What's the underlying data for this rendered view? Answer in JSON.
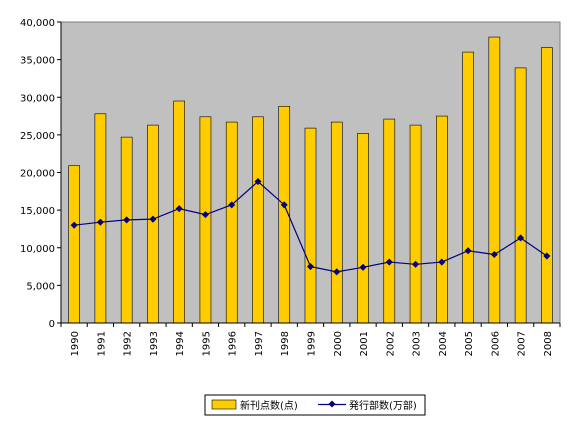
{
  "chart_data": {
    "type": "bar",
    "categories": [
      "1990",
      "1991",
      "1992",
      "1993",
      "1994",
      "1995",
      "1996",
      "1997",
      "1998",
      "1999",
      "2000",
      "2001",
      "2002",
      "2003",
      "2004",
      "2005",
      "2006",
      "2007",
      "2008"
    ],
    "series": [
      {
        "name": "新刊点数(点)",
        "type": "bar",
        "color": "#FFCC00",
        "values": [
          20900,
          27800,
          24700,
          26300,
          29500,
          27400,
          26700,
          27400,
          28800,
          25900,
          26700,
          25200,
          27100,
          26300,
          27500,
          36000,
          38000,
          33900,
          36600
        ]
      },
      {
        "name": "発行部数(万部)",
        "type": "line",
        "color": "#000080",
        "values": [
          13000,
          13400,
          13700,
          13800,
          15200,
          14400,
          15700,
          18800,
          15700,
          7500,
          6800,
          7400,
          8100,
          7800,
          8100,
          9600,
          9100,
          11300,
          8900
        ]
      }
    ],
    "y_ticks": [
      "0",
      "5,000",
      "10,000",
      "15,000",
      "20,000",
      "25,000",
      "30,000",
      "35,000",
      "40,000"
    ],
    "ylim": [
      0,
      40000
    ],
    "grid": false,
    "plot_background": "#C0C0C0",
    "legend_position": "bottom"
  }
}
